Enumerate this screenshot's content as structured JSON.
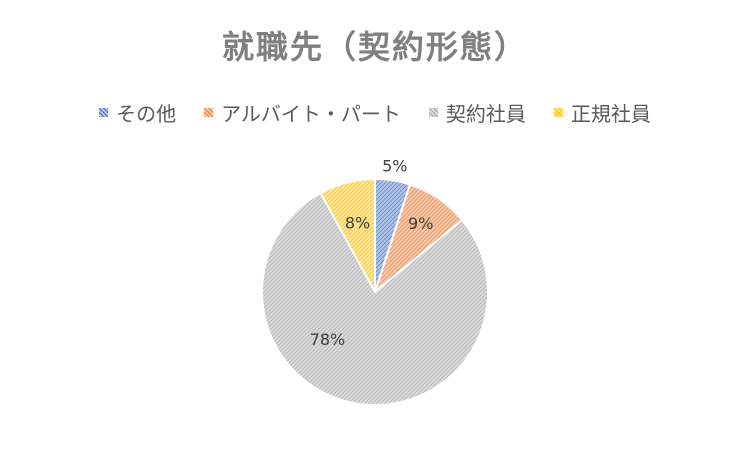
{
  "chart_data": {
    "type": "pie",
    "title": "就職先（契約形態）",
    "categories": [
      "その他",
      "アルバイト・パート",
      "契約社員",
      "正規社員"
    ],
    "values": [
      5,
      9,
      78,
      8
    ],
    "data_labels": [
      "5%",
      "9%",
      "78%",
      "8%"
    ],
    "colors": [
      "#4472c4",
      "#ed7d31",
      "#a5a5a5",
      "#ffc000"
    ],
    "fill_colors": [
      "#b4c7e7",
      "#f8cbad",
      "#dbdbdb",
      "#ffe699"
    ],
    "legend_position": "top",
    "start_angle_deg": 0,
    "direction": "clockwise"
  }
}
